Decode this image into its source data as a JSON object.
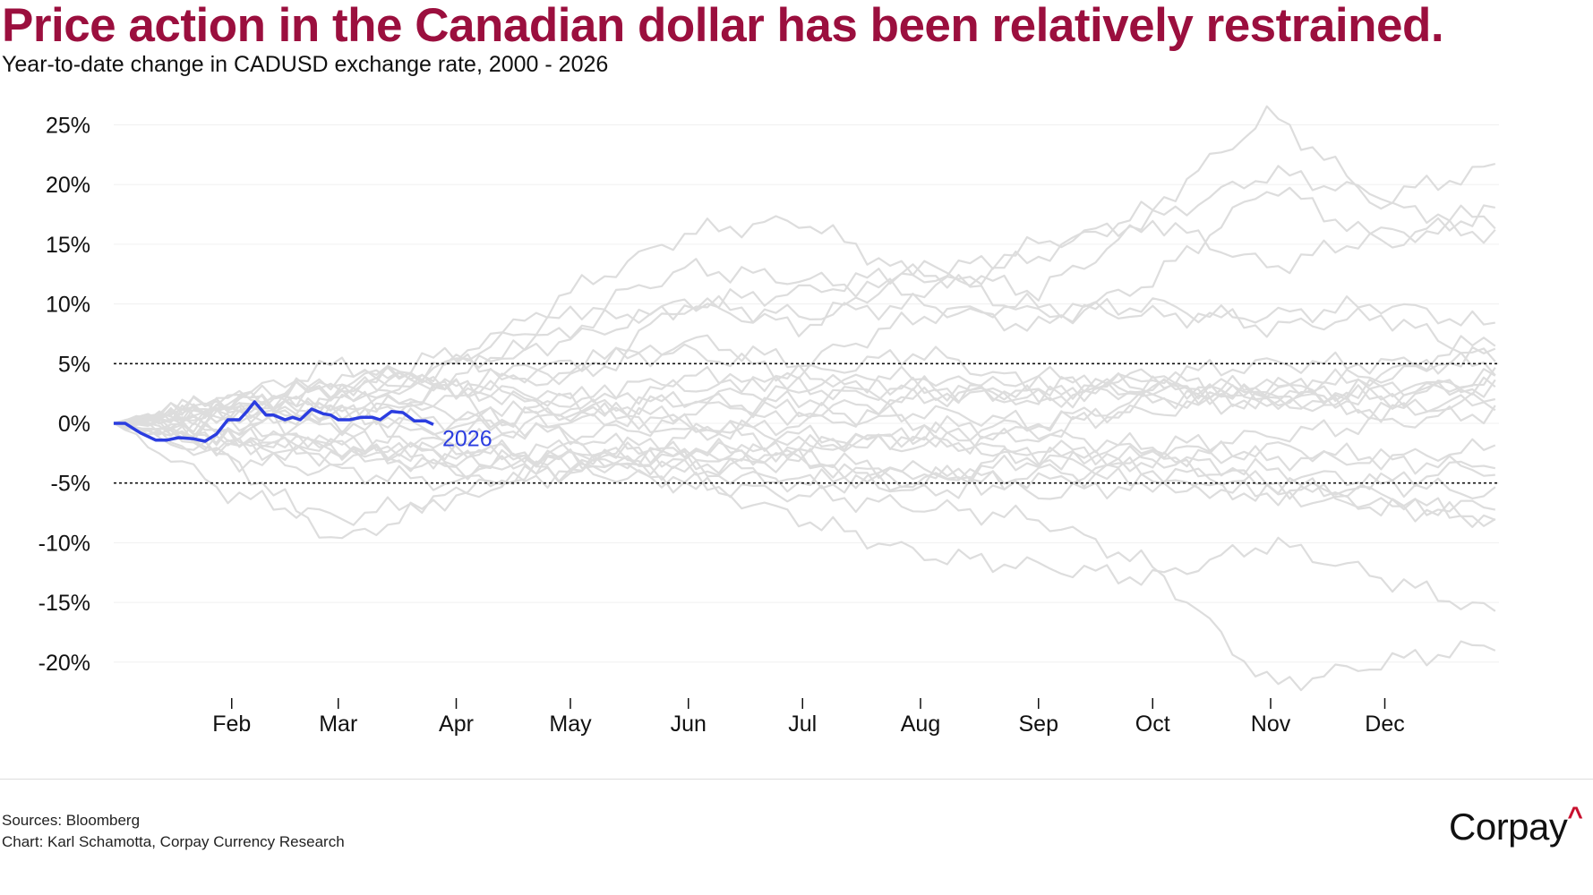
{
  "chart_data": {
    "type": "line",
    "title": "Price action in the Canadian dollar has been relatively restrained.",
    "subtitle": "Year-to-date change in CADUSD exchange rate, 2000 - 2026",
    "xlabel": "",
    "ylabel": "",
    "x_unit": "day of year",
    "ylim": [
      -23,
      27
    ],
    "yticks": [
      25,
      20,
      15,
      10,
      5,
      0,
      -5,
      -10,
      -15,
      -20
    ],
    "ytick_labels": [
      "25%",
      "20%",
      "15%",
      "10%",
      "5%",
      "0%",
      "-5%",
      "-10%",
      "-15%",
      "-20%"
    ],
    "xticks": [
      32,
      60,
      91,
      121,
      152,
      182,
      213,
      244,
      274,
      305,
      335
    ],
    "xtick_labels": [
      "Feb",
      "Mar",
      "Apr",
      "May",
      "Jun",
      "Jul",
      "Aug",
      "Sep",
      "Oct",
      "Nov",
      "Dec"
    ],
    "reference_lines": [
      5,
      -5
    ],
    "highlight": {
      "name": "2026",
      "color": "#2b3de0",
      "x": [
        1,
        4,
        8,
        12,
        15,
        18,
        22,
        25,
        28,
        31,
        34,
        36,
        38,
        41,
        43,
        46,
        48,
        50,
        53,
        56,
        58,
        60,
        63,
        66,
        69,
        71,
        74,
        77,
        80,
        83,
        85
      ],
      "y": [
        0,
        0,
        -0.8,
        -1.4,
        -1.4,
        -1.2,
        -1.3,
        -1.5,
        -0.9,
        0.3,
        0.3,
        1.0,
        1.8,
        0.7,
        0.7,
        0.3,
        0.5,
        0.3,
        1.2,
        0.8,
        0.7,
        0.3,
        0.3,
        0.5,
        0.5,
        0.3,
        1.0,
        0.9,
        0.2,
        0.2,
        -0.1
      ]
    },
    "background_series_color": "#dddddd",
    "background_series_x": [
      1,
      32,
      60,
      91,
      121,
      152,
      182,
      213,
      244,
      274,
      305,
      335,
      365
    ],
    "background_series": [
      [
        0,
        1,
        3,
        5,
        11,
        16,
        17,
        12,
        15,
        17,
        21,
        19,
        21.5
      ],
      [
        0,
        2,
        3,
        6,
        9,
        13,
        12,
        11,
        14,
        18,
        26,
        18,
        17
      ],
      [
        0,
        1,
        2,
        4,
        8,
        10,
        11,
        13,
        11,
        17,
        13,
        16,
        16
      ],
      [
        0,
        -1,
        2,
        5,
        4,
        10,
        9,
        10,
        8,
        12,
        20,
        15,
        18
      ],
      [
        0,
        1,
        0,
        3,
        4,
        7,
        5,
        9,
        10,
        9,
        9,
        10,
        8
      ],
      [
        0,
        2,
        3,
        3,
        5,
        6,
        4,
        6,
        3,
        4,
        5,
        5,
        5
      ],
      [
        0,
        0,
        1,
        -1,
        2,
        3,
        4,
        3,
        2,
        4,
        2,
        3,
        3
      ],
      [
        0,
        1,
        1,
        2,
        0,
        1,
        2,
        3,
        2,
        3,
        3,
        2,
        4
      ],
      [
        0,
        -1,
        0,
        -2,
        -3,
        -1,
        1,
        0,
        -1,
        2,
        2,
        1,
        2
      ],
      [
        0,
        -2,
        -1,
        -3,
        -2,
        -4,
        -3,
        -5,
        -2,
        -3,
        -4,
        -5,
        -3
      ],
      [
        0,
        -3,
        -4,
        -5,
        -4,
        -2,
        -3,
        -6,
        -4,
        -5,
        -6,
        -5,
        -6
      ],
      [
        0,
        -6,
        -8,
        -6,
        -4,
        -5,
        -8,
        -11,
        -12,
        -13,
        -10,
        -13,
        -16
      ],
      [
        0,
        -2,
        -3,
        -2,
        -3,
        -5,
        -6,
        -7,
        -8,
        -12,
        -22,
        -20,
        -18.5
      ],
      [
        0,
        -3,
        -10,
        -6,
        -3,
        -3,
        -5,
        -5,
        -3,
        -4,
        -5,
        -7,
        -8
      ],
      [
        0,
        1,
        -2,
        -3,
        -4,
        -2,
        -3,
        -4,
        -5,
        -3,
        -5,
        -6,
        -8.5
      ],
      [
        0,
        2,
        1,
        3,
        2,
        4,
        3,
        4,
        2,
        3,
        3,
        4,
        6
      ],
      [
        0,
        1,
        4,
        3,
        2,
        -1,
        0,
        1,
        0,
        2,
        3,
        4,
        7.5
      ],
      [
        0,
        -1,
        -3,
        -2,
        1,
        0,
        -2,
        -1,
        -3,
        -2,
        -1,
        0,
        1
      ],
      [
        0,
        2,
        5,
        3,
        1,
        2,
        1,
        2,
        3,
        3,
        2,
        3,
        3
      ],
      [
        0,
        -2,
        -2,
        -4,
        -2,
        -3,
        -2,
        -1,
        -3,
        -3,
        -2,
        -3,
        -2
      ],
      [
        0,
        1,
        2,
        1,
        -1,
        -3,
        -2,
        -1,
        0,
        1,
        2,
        1,
        2
      ],
      [
        0,
        -1,
        -2,
        0,
        1,
        2,
        3,
        2,
        4,
        3,
        2,
        2,
        4
      ],
      [
        0,
        2,
        3,
        5,
        7,
        10,
        8,
        13,
        9,
        10,
        8,
        9,
        5
      ],
      [
        0,
        -1,
        -2,
        -4,
        -3,
        -4,
        -5,
        -4,
        -6,
        -5,
        -6,
        -7,
        -7
      ],
      [
        0,
        1,
        1,
        0,
        -1,
        0,
        -1,
        -2,
        -1,
        -2,
        -3,
        -3,
        -4
      ]
    ]
  },
  "footer": {
    "sources": "Sources: Bloomberg",
    "credit": "Chart: Karl Schamotta, Corpay Currency Research"
  },
  "logo": {
    "text": "Corpay",
    "mark": "^"
  }
}
